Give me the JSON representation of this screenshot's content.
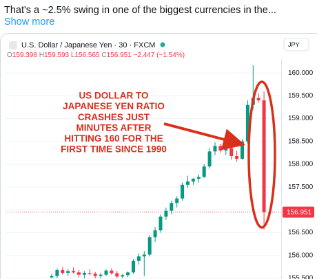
{
  "tweet": {
    "text": "That's a ~2.5% swing in one of the biggest currencies in the...",
    "show_more": "Show more"
  },
  "chart_data": {
    "type": "candlestick",
    "title": "U.S. Dollar / Japanese Yen · 30 · FXCM",
    "currency": "JPY",
    "header": {
      "o_label": "O",
      "o": "159.398",
      "h_label": "H",
      "h": "159.593",
      "l_label": "L",
      "l": "156.565",
      "c_label": "C",
      "c": "156.951",
      "change": "−2.447 (−1.54%)"
    },
    "annotation": [
      "US DOLLAR TO",
      "JAPANESE YEN RATIO",
      "CRASHES JUST",
      "MINUTES AFTER",
      "HITTING 160 FOR THE",
      "FIRST TIME SINCE 1990"
    ],
    "up_color": "#089981",
    "down_color": "#f23645",
    "open": [
      155.52,
      155.55,
      155.68,
      155.62,
      155.66,
      155.63,
      155.58,
      155.62,
      155.6,
      155.55,
      155.58,
      155.67,
      155.61,
      155.54,
      155.57,
      155.63,
      155.88,
      155.98,
      156.02,
      156.4,
      156.55,
      156.85,
      156.98,
      157.15,
      157.25,
      157.55,
      157.62,
      157.68,
      157.72,
      157.95,
      158.28,
      158.4,
      158.3,
      158.35,
      158.18,
      158.12,
      158.5,
      159.3,
      159.45,
      159.398
    ],
    "high": [
      155.6,
      155.72,
      155.75,
      155.7,
      155.74,
      155.68,
      155.66,
      155.7,
      155.64,
      155.62,
      155.7,
      155.72,
      155.66,
      155.6,
      155.65,
      155.92,
      156.05,
      156.1,
      156.45,
      156.62,
      156.9,
      157.05,
      157.2,
      157.3,
      157.6,
      157.75,
      157.7,
      157.78,
      158.0,
      158.35,
      158.48,
      158.45,
      158.42,
      158.4,
      158.3,
      158.55,
      159.4,
      160.17,
      159.55,
      159.593
    ],
    "low": [
      155.5,
      155.5,
      155.58,
      155.55,
      155.6,
      155.52,
      155.5,
      155.56,
      155.5,
      155.5,
      155.55,
      155.58,
      155.5,
      155.5,
      155.52,
      155.6,
      155.8,
      155.55,
      155.98,
      156.3,
      156.5,
      156.78,
      156.9,
      157.05,
      157.2,
      157.48,
      157.55,
      157.6,
      157.7,
      157.9,
      158.2,
      158.25,
      158.2,
      158.1,
      158.05,
      158.1,
      158.45,
      159.2,
      159.35,
      156.565
    ],
    "close": [
      155.55,
      155.68,
      155.62,
      155.66,
      155.63,
      155.58,
      155.62,
      155.6,
      155.55,
      155.58,
      155.67,
      155.61,
      155.54,
      155.57,
      155.63,
      155.88,
      155.98,
      156.02,
      156.4,
      156.55,
      156.85,
      156.98,
      157.15,
      157.25,
      157.55,
      157.62,
      157.68,
      157.72,
      157.95,
      158.28,
      158.4,
      158.3,
      158.35,
      158.18,
      158.12,
      158.5,
      159.3,
      159.45,
      159.4,
      156.951
    ],
    "ylim": [
      155.485,
      160.303
    ],
    "yticks": [
      {
        "value": 155.5,
        "label": "155.500"
      },
      {
        "value": 156,
        "label": "156.000"
      },
      {
        "value": 156.5,
        "label": "156.500"
      },
      {
        "value": 157,
        "label": "157.000"
      },
      {
        "value": 157.5,
        "label": "157.500"
      },
      {
        "value": 158,
        "label": "158.000"
      },
      {
        "value": 158.5,
        "label": "158.500"
      },
      {
        "value": 159,
        "label": "159.000"
      },
      {
        "value": 159.5,
        "label": "159.500"
      },
      {
        "value": 160,
        "label": "160.000"
      }
    ]
  }
}
